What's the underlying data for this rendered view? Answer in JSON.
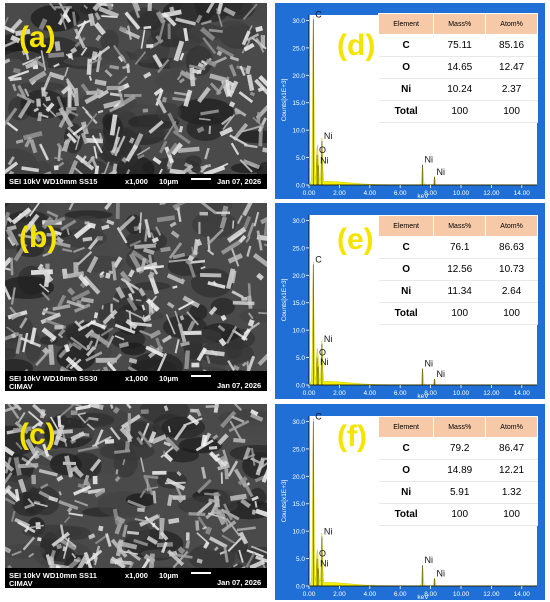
{
  "sem_panels": [
    {
      "label": "(a)",
      "bar_left": "SEI  10kV  WD10mm  SS15",
      "mag": "x1,000",
      "scale": "10µm",
      "date": "Jan 07, 2026",
      "org": ""
    },
    {
      "label": "(b)",
      "bar_left": "SEI  10kV  WD10mm  SS30",
      "mag": "x1,000",
      "scale": "10µm",
      "date": "Jan 07, 2026",
      "org": "CIMAV"
    },
    {
      "label": "(c)",
      "bar_left": "SEI  10kV  WD10mm  SS11",
      "mag": "x1,000",
      "scale": "10µm",
      "date": "Jan 07, 2026",
      "org": "CIMAV"
    }
  ],
  "eds_panels": [
    {
      "label": "(d)",
      "table": {
        "headers": [
          "Element",
          "Mass%",
          "Atom%"
        ],
        "rows": [
          [
            "C",
            "75.11",
            "85.16"
          ],
          [
            "O",
            "14.65",
            "12.47"
          ],
          [
            "Ni",
            "10.24",
            "2.37"
          ],
          [
            "Total",
            "100",
            "100"
          ]
        ]
      }
    },
    {
      "label": "(e)",
      "table": {
        "headers": [
          "Element",
          "Mass%",
          "Atom%"
        ],
        "rows": [
          [
            "C",
            "76.1",
            "86.63"
          ],
          [
            "O",
            "12.56",
            "10.73"
          ],
          [
            "Ni",
            "11.34",
            "2.64"
          ],
          [
            "Total",
            "100",
            "100"
          ]
        ]
      }
    },
    {
      "label": "(f)",
      "table": {
        "headers": [
          "Element",
          "Mass%",
          "Atom%"
        ],
        "rows": [
          [
            "C",
            "79.2",
            "86.47"
          ],
          [
            "O",
            "14.89",
            "12.21"
          ],
          [
            "Ni",
            "5.91",
            "1.32"
          ],
          [
            "Total",
            "100",
            "100"
          ]
        ]
      }
    }
  ],
  "chart_data": [
    {
      "type": "line",
      "title": "",
      "xlabel": "keV",
      "ylabel": "Counts[x1E+3]",
      "xlim": [
        0,
        15
      ],
      "ylim": [
        0,
        31
      ],
      "x_ticks": [
        "0.00",
        "2.00",
        "4.00",
        "6.00",
        "8.00",
        "10.00",
        "12.00",
        "14.00"
      ],
      "y_ticks": [
        "0.0",
        "5.0",
        "10.0",
        "15.0",
        "20.0",
        "25.0",
        "30.0"
      ],
      "peaks": [
        {
          "x": 0.28,
          "y": 30.2,
          "label": "C"
        },
        {
          "x": 0.53,
          "y": 5.5,
          "label": "O"
        },
        {
          "x": 0.85,
          "y": 8.0,
          "label": "Ni"
        },
        {
          "x": 0.6,
          "y": 3.6,
          "label": "Ni"
        },
        {
          "x": 7.47,
          "y": 3.7,
          "label": "Ni"
        },
        {
          "x": 8.26,
          "y": 1.5,
          "label": "Ni"
        }
      ]
    },
    {
      "type": "line",
      "title": "",
      "xlabel": "keV",
      "ylabel": "Counts[x1E+3]",
      "xlim": [
        0,
        15
      ],
      "ylim": [
        0,
        31
      ],
      "x_ticks": [
        "0.00",
        "2.00",
        "4.00",
        "6.00",
        "8.00",
        "10.00",
        "12.00",
        "14.00"
      ],
      "y_ticks": [
        "0.0",
        "5.0",
        "10.0",
        "15.0",
        "20.0",
        "25.0",
        "30.0"
      ],
      "peaks": [
        {
          "x": 0.28,
          "y": 22.0,
          "label": "C"
        },
        {
          "x": 0.53,
          "y": 5.0,
          "label": "O"
        },
        {
          "x": 0.85,
          "y": 7.5,
          "label": "Ni"
        },
        {
          "x": 0.6,
          "y": 3.3,
          "label": "Ni"
        },
        {
          "x": 7.47,
          "y": 3.0,
          "label": "Ni"
        },
        {
          "x": 8.26,
          "y": 1.1,
          "label": "Ni"
        }
      ]
    },
    {
      "type": "line",
      "title": "",
      "xlabel": "keV",
      "ylabel": "Counts[x1E+3]",
      "xlim": [
        0,
        15
      ],
      "ylim": [
        0,
        31
      ],
      "x_ticks": [
        "0.00",
        "2.00",
        "4.00",
        "6.00",
        "8.00",
        "10.00",
        "12.00",
        "14.00"
      ],
      "y_ticks": [
        "0.0",
        "5.0",
        "10.0",
        "15.0",
        "20.0",
        "25.0",
        "30.0"
      ],
      "peaks": [
        {
          "x": 0.28,
          "y": 30.0,
          "label": "C"
        },
        {
          "x": 0.53,
          "y": 5.0,
          "label": "O"
        },
        {
          "x": 0.85,
          "y": 9.0,
          "label": "Ni"
        },
        {
          "x": 0.6,
          "y": 3.2,
          "label": "Ni"
        },
        {
          "x": 7.47,
          "y": 3.8,
          "label": "Ni"
        },
        {
          "x": 8.26,
          "y": 1.4,
          "label": "Ni"
        }
      ]
    }
  ]
}
